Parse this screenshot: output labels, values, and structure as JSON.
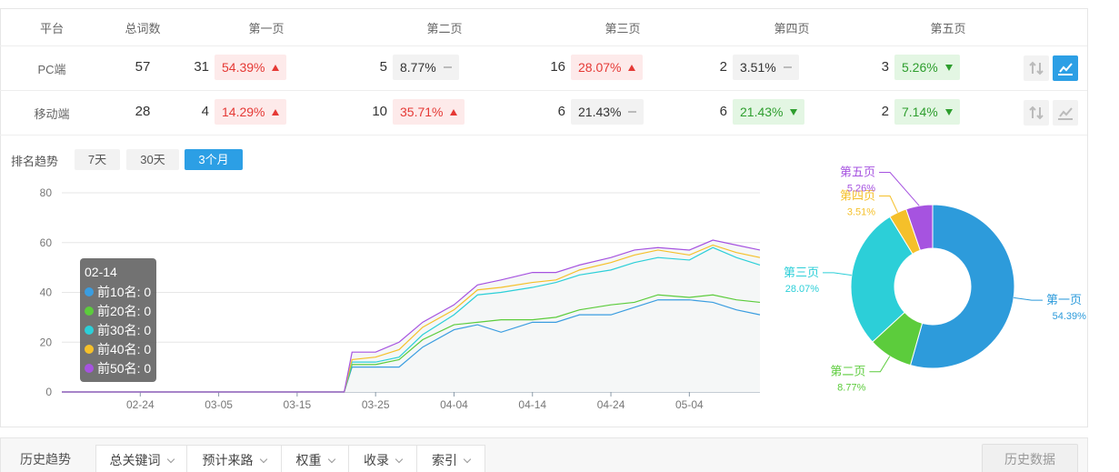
{
  "table": {
    "headers": [
      "平台",
      "总词数",
      "第一页",
      "第二页",
      "第三页",
      "第四页",
      "第五页"
    ],
    "rows": [
      {
        "platform": "PC端",
        "total": 57,
        "pages": [
          {
            "count": 31,
            "percent": "54.39%",
            "trend": "up"
          },
          {
            "count": 5,
            "percent": "8.77%",
            "trend": "flat"
          },
          {
            "count": 16,
            "percent": "28.07%",
            "trend": "up"
          },
          {
            "count": 2,
            "percent": "3.51%",
            "trend": "flat"
          },
          {
            "count": 3,
            "percent": "5.26%",
            "trend": "down"
          }
        ]
      },
      {
        "platform": "移动端",
        "total": 28,
        "pages": [
          {
            "count": 4,
            "percent": "14.29%",
            "trend": "up"
          },
          {
            "count": 10,
            "percent": "35.71%",
            "trend": "up"
          },
          {
            "count": 6,
            "percent": "21.43%",
            "trend": "flat"
          },
          {
            "count": 6,
            "percent": "21.43%",
            "trend": "down"
          },
          {
            "count": 2,
            "percent": "7.14%",
            "trend": "down"
          }
        ]
      }
    ]
  },
  "trend": {
    "label": "排名趋势",
    "ranges": [
      "7天",
      "30天",
      "3个月"
    ],
    "active": 2
  },
  "chart_data": [
    {
      "type": "line",
      "x": [
        "02-14",
        "02-24",
        "03-05",
        "03-15",
        "03-21",
        "03-22",
        "03-25",
        "03-28",
        "03-31",
        "04-04",
        "04-07",
        "04-10",
        "04-14",
        "04-17",
        "04-20",
        "04-24",
        "04-27",
        "04-30",
        "05-04",
        "05-07",
        "05-10",
        "05-13"
      ],
      "xticks": [
        "02-24",
        "03-05",
        "03-15",
        "03-25",
        "04-04",
        "04-14",
        "04-24",
        "05-04"
      ],
      "ylim": [
        0,
        80
      ],
      "yticks": [
        0,
        20,
        40,
        60,
        80
      ],
      "grid": true,
      "series": [
        {
          "name": "前10名",
          "color": "#3a9de0",
          "values": [
            0,
            0,
            0,
            0,
            0,
            10,
            10,
            10,
            18,
            25,
            27,
            24,
            28,
            28,
            31,
            31,
            34,
            37,
            37,
            36,
            33,
            31
          ]
        },
        {
          "name": "前20名",
          "color": "#5ccc3c",
          "values": [
            0,
            0,
            0,
            0,
            0,
            11,
            11,
            13,
            21,
            27,
            28,
            29,
            29,
            30,
            33,
            35,
            36,
            39,
            38,
            39,
            37,
            36
          ]
        },
        {
          "name": "前30名",
          "color": "#2ccfd8",
          "values": [
            0,
            0,
            0,
            0,
            0,
            12,
            12,
            14,
            23,
            31,
            39,
            40,
            42,
            44,
            47,
            49,
            52,
            54,
            53,
            58,
            54,
            51
          ]
        },
        {
          "name": "前40名",
          "color": "#f5c02a",
          "values": [
            0,
            0,
            0,
            0,
            0,
            13,
            14,
            17,
            26,
            33,
            41,
            42,
            44,
            45,
            49,
            52,
            55,
            57,
            55,
            59,
            56,
            54
          ]
        },
        {
          "name": "前50名",
          "color": "#a653e0",
          "values": [
            0,
            0,
            0,
            0,
            0,
            16,
            16,
            20,
            28,
            35,
            43,
            45,
            48,
            48,
            51,
            54,
            57,
            58,
            57,
            61,
            59,
            57
          ]
        }
      ],
      "tooltip": {
        "separator": ": "
      }
    },
    {
      "type": "pie",
      "categories": [
        "第一页",
        "第二页",
        "第三页",
        "第四页",
        "第五页"
      ],
      "values": [
        54.39,
        8.77,
        28.07,
        3.51,
        5.26
      ],
      "value_labels": [
        "54.39%",
        "8.77%",
        "28.07%",
        "3.51%",
        "5.26%"
      ],
      "colors": [
        "#2d9bdb",
        "#5ccc3c",
        "#2ccfd8",
        "#f5c02a",
        "#a653e0"
      ]
    }
  ],
  "history": {
    "label": "历史趋势",
    "tabs": [
      "总关键词",
      "预计来路",
      "权重",
      "收录",
      "索引"
    ],
    "button": "历史数据"
  }
}
